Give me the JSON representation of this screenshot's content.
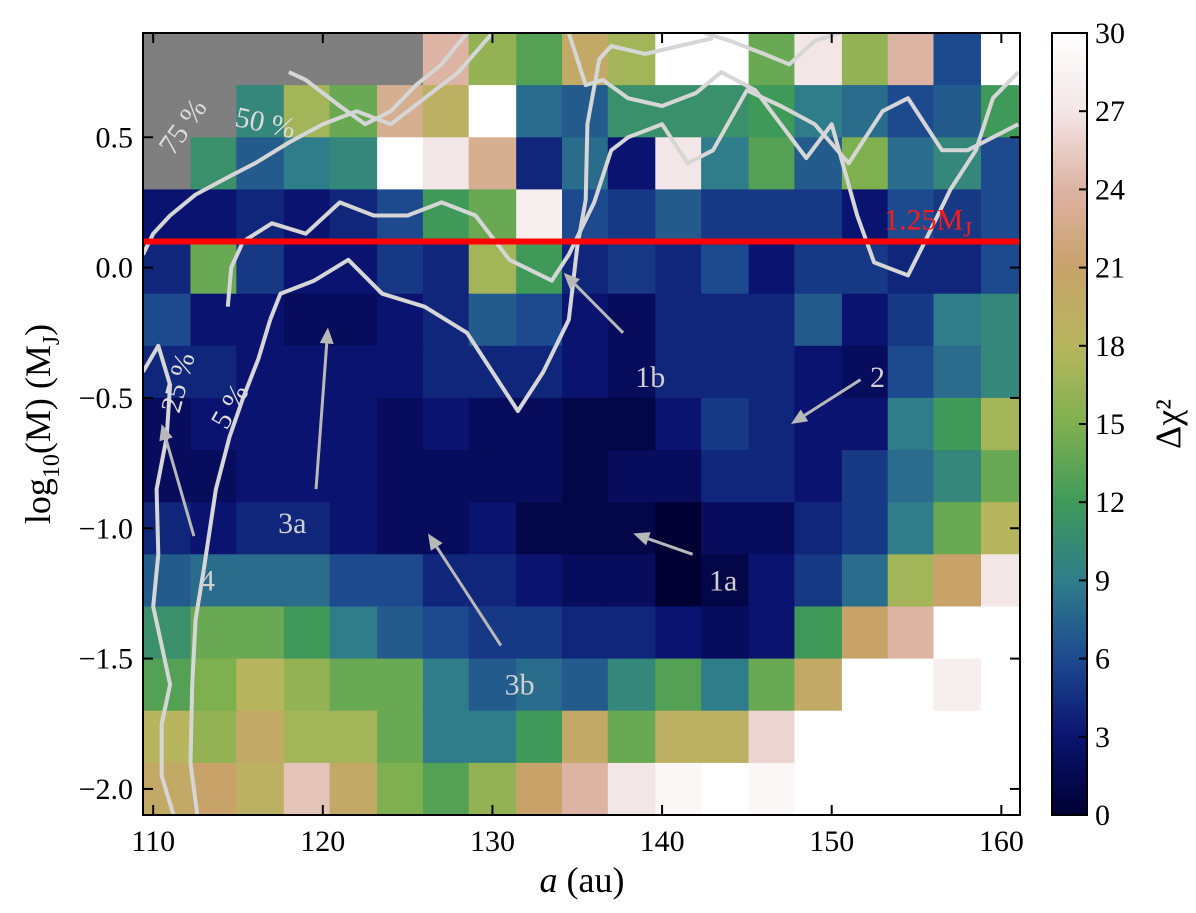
{
  "chart_data": {
    "type": "heatmap",
    "xlabel_italic": "a",
    "xlabel_rest": " (au)",
    "ylabel_pre": "log",
    "ylabel_sub": "10",
    "ylabel_mid": "(M) (M",
    "ylabel_sub2": "J",
    "ylabel_end": ")",
    "xlim": [
      109.4,
      161.1
    ],
    "ylim": [
      -2.1,
      0.9
    ],
    "xticks": [
      110,
      120,
      130,
      140,
      150,
      160
    ],
    "yticks": [
      0.5,
      0.0,
      -0.5,
      -1.0,
      -1.5,
      -2.0
    ],
    "ytick_labels": [
      "0.5",
      "0.0",
      "−0.5",
      "−1.0",
      "−1.5",
      "−2.0"
    ],
    "colorbar": {
      "label": "Δχ²",
      "range": [
        0,
        30
      ],
      "ticks": [
        0,
        3,
        6,
        9,
        12,
        15,
        18,
        21,
        24,
        27,
        30
      ],
      "colors": [
        "#000033",
        "#0a1470",
        "#1d4a8f",
        "#2f7d8a",
        "#3f9a5a",
        "#7fb04f",
        "#b7b65e",
        "#c7a36a",
        "#ddb3a3",
        "#f3e6e6",
        "#ffffff"
      ]
    },
    "grid": {
      "x_edges": [
        109.4,
        112.2,
        114.9,
        117.7,
        120.4,
        123.2,
        125.9,
        128.6,
        131.4,
        134.1,
        136.8,
        139.6,
        142.3,
        145.1,
        147.8,
        150.6,
        153.3,
        156.0,
        158.8,
        161.1
      ],
      "y_edges": [
        0.9,
        0.7,
        0.5,
        0.3,
        0.1,
        -0.1,
        -0.3,
        -0.5,
        -0.7,
        -0.9,
        -1.1,
        -1.3,
        -1.5,
        -1.7,
        -1.9,
        -2.1
      ],
      "missing_value_color": "#7f7f7f",
      "values": [
        [
          null,
          null,
          null,
          null,
          null,
          null,
          24,
          16,
          13,
          20,
          17,
          30,
          30,
          14,
          27,
          16,
          24,
          6,
          30
        ],
        [
          null,
          null,
          10,
          17,
          14,
          23,
          19,
          30,
          8,
          7,
          11,
          11,
          11,
          12,
          9,
          8,
          6,
          7,
          12
        ],
        [
          null,
          11,
          7,
          9,
          10,
          30,
          27,
          23,
          4,
          8,
          3,
          27,
          9,
          13,
          7,
          15,
          8,
          10,
          6
        ],
        [
          3,
          3,
          4,
          3,
          4,
          6,
          12,
          14,
          28,
          6,
          5,
          7,
          5,
          5,
          5,
          3,
          6,
          5,
          6
        ],
        [
          4,
          14,
          5,
          3,
          3,
          5,
          4,
          17,
          12,
          4,
          5,
          4,
          6,
          3,
          5,
          5,
          4,
          4,
          6
        ],
        [
          6,
          3,
          3,
          2,
          2,
          3,
          4,
          7,
          6,
          3,
          2,
          4,
          4,
          4,
          7,
          3,
          5,
          9,
          10
        ],
        [
          4,
          4,
          3,
          3,
          3,
          3,
          4,
          4,
          4,
          3,
          2,
          4,
          4,
          4,
          3,
          2,
          6,
          8,
          10
        ],
        [
          2,
          3,
          3,
          3,
          3,
          2,
          3,
          2,
          2,
          1,
          1,
          3,
          5,
          4,
          3,
          3,
          9,
          12,
          17
        ],
        [
          2,
          2,
          3,
          3,
          3,
          2,
          2,
          2,
          2,
          1,
          2,
          2,
          4,
          4,
          3,
          5,
          8,
          10,
          14
        ],
        [
          4,
          3,
          4,
          4,
          3,
          2,
          2,
          3,
          1,
          1,
          1,
          0,
          2,
          2,
          4,
          5,
          9,
          14,
          18
        ],
        [
          7,
          8,
          8,
          8,
          6,
          6,
          4,
          4,
          3,
          2,
          2,
          0,
          1,
          3,
          5,
          8,
          17,
          21,
          27
        ],
        [
          11,
          14,
          14,
          12,
          9,
          7,
          6,
          5,
          5,
          4,
          4,
          3,
          2,
          3,
          12,
          21,
          24,
          30,
          30
        ],
        [
          13,
          15,
          18,
          16,
          14,
          14,
          9,
          7,
          8,
          7,
          10,
          13,
          9,
          14,
          20,
          30,
          30,
          28,
          30
        ],
        [
          18,
          16,
          20,
          17,
          17,
          14,
          9,
          9,
          12,
          20,
          14,
          19,
          19,
          26,
          30,
          30,
          30,
          30,
          30
        ],
        [
          20,
          21,
          19,
          25,
          20,
          15,
          13,
          16,
          21,
          24,
          27,
          29,
          30,
          29,
          30,
          30,
          30,
          30,
          30
        ]
      ]
    },
    "threshold_line": {
      "y": 0.1,
      "label_main": "1.25M",
      "label_sub": "J",
      "color": "#ff0000"
    },
    "contours": [
      {
        "label": "5 %",
        "points": [
          [
            116.9,
            -0.2
          ],
          [
            117.5,
            -0.1
          ],
          [
            119.5,
            -0.05
          ],
          [
            121.5,
            0.03
          ],
          [
            123.5,
            -0.1
          ],
          [
            126,
            -0.15
          ],
          [
            128.5,
            -0.25
          ],
          [
            130,
            -0.4
          ],
          [
            131.5,
            -0.55
          ],
          [
            133,
            -0.4
          ],
          [
            134.5,
            -0.2
          ],
          [
            135,
            0.08
          ],
          [
            135.5,
            0.26
          ],
          [
            135.6,
            0.55
          ],
          [
            136.3,
            0.8
          ],
          [
            137,
            0.85
          ],
          [
            139,
            0.82
          ],
          [
            141,
            0.85
          ],
          [
            143,
            0.88
          ]
        ]
      },
      {
        "label": "5 %",
        "points": [
          [
            116.9,
            -0.2
          ],
          [
            116.2,
            -0.35
          ],
          [
            115.3,
            -0.5
          ],
          [
            114.5,
            -0.65
          ],
          [
            113.7,
            -0.85
          ],
          [
            113,
            -1.15
          ],
          [
            112.5,
            -1.35
          ],
          [
            112.3,
            -1.6
          ],
          [
            112.2,
            -1.9
          ],
          [
            112.6,
            -2.1
          ]
        ]
      },
      {
        "label": "25 %",
        "points": [
          [
            109.4,
            -0.4
          ],
          [
            110.3,
            -0.3
          ],
          [
            111,
            -0.45
          ],
          [
            110.8,
            -0.65
          ],
          [
            110.2,
            -0.85
          ],
          [
            110.3,
            -1.1
          ],
          [
            110,
            -1.3
          ],
          [
            110.5,
            -1.45
          ],
          [
            111,
            -1.6
          ],
          [
            110.5,
            -1.75
          ],
          [
            110.5,
            -1.95
          ],
          [
            111.2,
            -2.1
          ]
        ]
      },
      {
        "label": "25 %",
        "points": [
          [
            114.4,
            -0.15
          ],
          [
            114.6,
            0
          ],
          [
            115.3,
            0.1
          ],
          [
            117,
            0.17
          ],
          [
            119,
            0.13
          ],
          [
            121,
            0.25
          ],
          [
            123,
            0.2
          ],
          [
            125,
            0.2
          ],
          [
            127,
            0.25
          ],
          [
            129,
            0.2
          ],
          [
            131,
            0.03
          ],
          [
            133.5,
            -0.05
          ],
          [
            134.5,
            0.05
          ],
          [
            136,
            0.25
          ],
          [
            137,
            0.45
          ],
          [
            138,
            0.5
          ],
          [
            140,
            0.55
          ],
          [
            141.5,
            0.4
          ],
          [
            143,
            0.45
          ],
          [
            145,
            0.68
          ],
          [
            147,
            0.62
          ],
          [
            149,
            0.55
          ],
          [
            151,
            0.4
          ],
          [
            153,
            0.6
          ],
          [
            154.5,
            0.65
          ],
          [
            156.5,
            0.45
          ],
          [
            158,
            0.45
          ],
          [
            159.5,
            0.5
          ],
          [
            161,
            0.55
          ]
        ]
      },
      {
        "label": "50 %",
        "points": [
          [
            109.4,
            0.05
          ],
          [
            110,
            0.13
          ],
          [
            111,
            0.2
          ],
          [
            112.5,
            0.28
          ],
          [
            114.5,
            0.35
          ],
          [
            116,
            0.4
          ],
          [
            118,
            0.48
          ],
          [
            120,
            0.55
          ],
          [
            122,
            0.6
          ],
          [
            124,
            0.55
          ],
          [
            126,
            0.65
          ],
          [
            128,
            0.75
          ],
          [
            130,
            0.9
          ]
        ]
      },
      {
        "label": "50 %",
        "points": [
          [
            134.5,
            0.9
          ],
          [
            135.5,
            0.7
          ],
          [
            136.5,
            0.72
          ],
          [
            138,
            0.65
          ],
          [
            140,
            0.62
          ],
          [
            142,
            0.67
          ],
          [
            143.5,
            0.75
          ],
          [
            145.5,
            0.68
          ],
          [
            147,
            0.55
          ],
          [
            148.5,
            0.42
          ],
          [
            150,
            0.55
          ],
          [
            151.5,
            0.2
          ],
          [
            152.5,
            0.02
          ],
          [
            154.5,
            -0.03
          ],
          [
            155.5,
            0.1
          ],
          [
            157,
            0.3
          ],
          [
            158.5,
            0.45
          ],
          [
            159.5,
            0.65
          ],
          [
            161,
            0.75
          ]
        ]
      },
      {
        "label": "75 %",
        "points": [
          [
            118,
            0.75
          ],
          [
            119,
            0.72
          ],
          [
            121,
            0.62
          ],
          [
            122.5,
            0.55
          ],
          [
            124,
            0.6
          ],
          [
            125.5,
            0.7
          ],
          [
            127,
            0.78
          ],
          [
            128.5,
            0.9
          ]
        ]
      },
      {
        "label": "75 %",
        "points": [
          [
            142.5,
            0.9
          ],
          [
            144,
            0.87
          ],
          [
            146,
            0.82
          ],
          [
            147.5,
            0.78
          ],
          [
            149,
            0.87
          ],
          [
            150.5,
            0.9
          ]
        ]
      }
    ],
    "contour_labels": [
      "75 %",
      "50 %",
      "25 %",
      "5 %"
    ],
    "annotations": [
      {
        "text": "1a",
        "arrow_from": [
          141.8,
          -1.1
        ],
        "arrow_to": [
          138.3,
          -1.02
        ],
        "text_at": [
          143.6,
          -1.2
        ]
      },
      {
        "text": "1b",
        "arrow_from": [
          137.7,
          -0.25
        ],
        "arrow_to": [
          134.2,
          -0.02
        ],
        "text_at": [
          139.3,
          -0.42
        ]
      },
      {
        "text": "2",
        "arrow_from": [
          151.7,
          -0.43
        ],
        "arrow_to": [
          147.6,
          -0.6
        ],
        "text_at": [
          152.7,
          -0.42
        ]
      },
      {
        "text": "3a",
        "arrow_from": [
          119.6,
          -0.85
        ],
        "arrow_to": [
          120.3,
          -0.23
        ],
        "text_at": [
          118.2,
          -0.98
        ]
      },
      {
        "text": "3b",
        "arrow_from": [
          130.5,
          -1.45
        ],
        "arrow_to": [
          126.2,
          -1.02
        ],
        "text_at": [
          131.6,
          -1.6
        ]
      },
      {
        "text": "4",
        "arrow_from": [
          112.4,
          -1.03
        ],
        "arrow_to": [
          110.5,
          -0.6
        ],
        "text_at": [
          113.2,
          -1.2
        ]
      }
    ]
  }
}
